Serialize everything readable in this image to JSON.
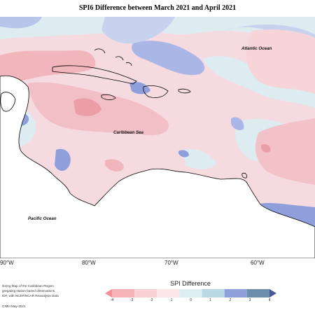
{
  "title": "SPI6 Difference between March 2021 and April 2021",
  "labels": {
    "atlantic": "Atlantic Ocean",
    "caribbean": "Caribbean Sea",
    "pacific": "Pacific Ocean"
  },
  "longitude_ticks": [
    "90°W",
    "80°W",
    "70°W",
    "60°W"
  ],
  "credit_lines": [
    "itoring Map of the Caribbean Region.",
    "gregating station based observations,",
    "IDF, with NCEP/NCAR Reanalysis Data",
    "CIMH May-2021"
  ],
  "legend": {
    "title": "SPI Difference",
    "ticks": [
      "-4",
      "-3",
      "-2",
      "-1",
      "0",
      "1",
      "2",
      "3",
      "4"
    ],
    "colors": [
      "#f48e98",
      "#f6b2b7",
      "#f9d1d4",
      "#fde6e8",
      "#dceef2",
      "#b8d9e3",
      "#8e9fdc",
      "#6d8fae",
      "#4a5799"
    ]
  }
}
